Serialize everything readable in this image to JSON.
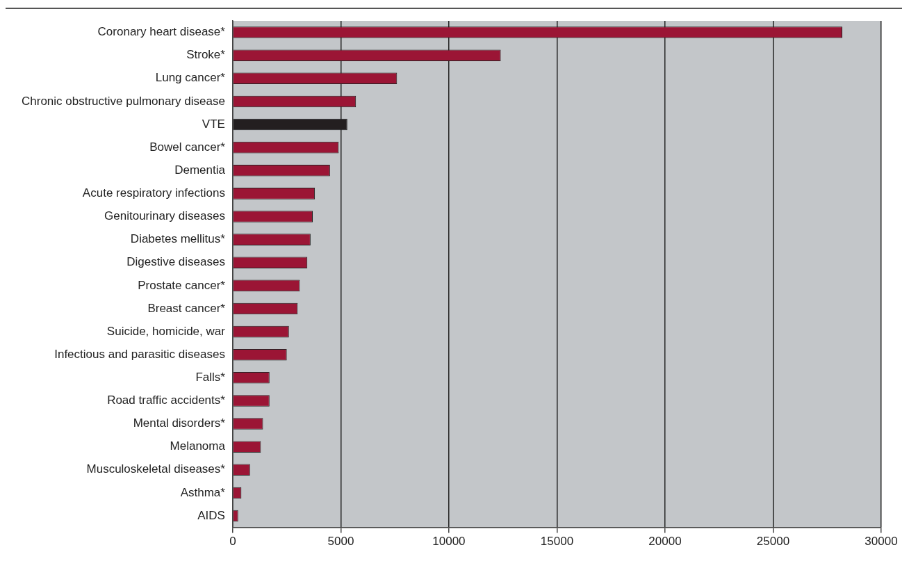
{
  "chart_data": {
    "type": "bar",
    "orientation": "horizontal",
    "categories": [
      "Coronary heart disease*",
      "Stroke*",
      "Lung cancer*",
      "Chronic obstructive pulmonary disease",
      "VTE",
      "Bowel cancer*",
      "Dementia",
      "Acute respiratory infections",
      "Genitourinary diseases",
      "Diabetes mellitus*",
      "Digestive diseases",
      "Prostate cancer*",
      "Breast cancer*",
      "Suicide, homicide, war",
      "Infectious and parasitic diseases",
      "Falls*",
      "Road traffic accidents*",
      "Mental disorders*",
      "Melanoma",
      "Musculoskeletal diseases*",
      "Asthma*",
      "AIDS"
    ],
    "values": [
      28200,
      12400,
      7600,
      5700,
      5300,
      4900,
      4500,
      3800,
      3700,
      3600,
      3450,
      3100,
      3000,
      2600,
      2500,
      1700,
      1700,
      1400,
      1300,
      800,
      400,
      250
    ],
    "colors": [
      "#9b1535",
      "#9b1535",
      "#9b1535",
      "#9b1535",
      "#231f20",
      "#9b1535",
      "#9b1535",
      "#9b1535",
      "#9b1535",
      "#9b1535",
      "#9b1535",
      "#9b1535",
      "#9b1535",
      "#9b1535",
      "#9b1535",
      "#9b1535",
      "#9b1535",
      "#9b1535",
      "#9b1535",
      "#9b1535",
      "#9b1535",
      "#9b1535"
    ],
    "xlim": [
      0,
      30000
    ],
    "xticks": [
      0,
      5000,
      10000,
      15000,
      20000,
      25000,
      30000
    ],
    "grid": "x"
  }
}
